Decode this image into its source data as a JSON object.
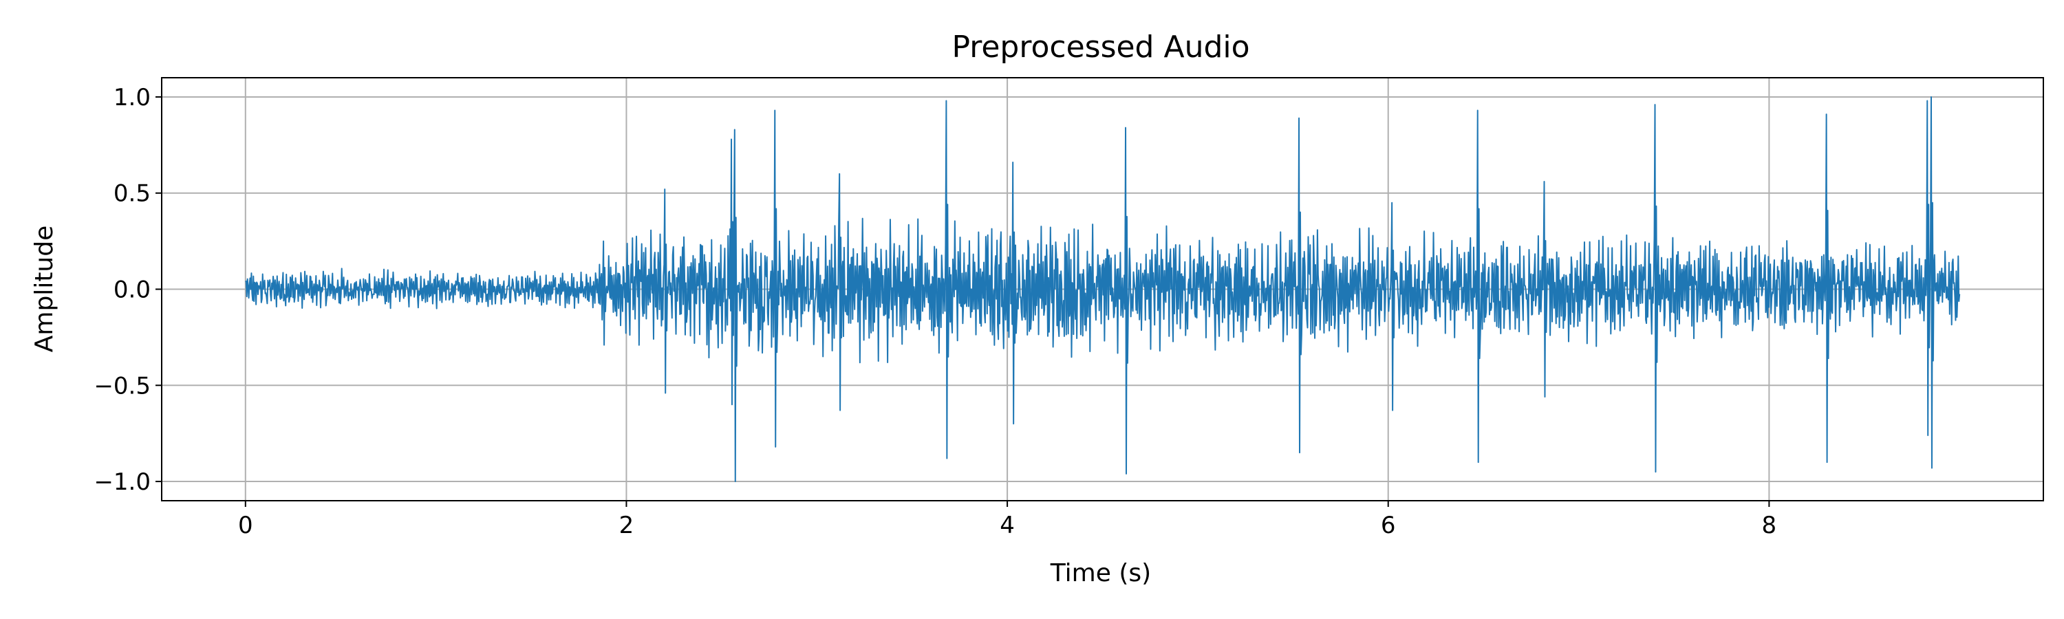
{
  "chart_data": {
    "type": "line",
    "title": "Preprocessed Audio",
    "xlabel": "Time (s)",
    "ylabel": "Amplitude",
    "xlim": [
      -0.44,
      9.44
    ],
    "ylim": [
      -1.1,
      1.1
    ],
    "x_ticks": [
      0,
      2,
      4,
      6,
      8
    ],
    "x_tick_labels": [
      "0",
      "2",
      "4",
      "6",
      "8"
    ],
    "y_ticks": [
      1.0,
      0.5,
      0.0,
      -0.5,
      -1.0
    ],
    "y_tick_labels": [
      "1.0",
      "0.5",
      "0.0",
      "−0.5",
      "−1.0"
    ],
    "grid": true,
    "legend": "none",
    "series": [
      {
        "color": "#1f77b4",
        "duration": 9.0,
        "envelope": [
          {
            "t": 0.0,
            "a": 0.12
          },
          {
            "t": 1.8,
            "a": 0.1
          },
          {
            "t": 2.0,
            "a": 0.3
          },
          {
            "t": 2.5,
            "a": 0.4
          },
          {
            "t": 9.0,
            "a": 0.25
          }
        ],
        "spikes": [
          {
            "t": 1.88,
            "max": 0.25,
            "min": -0.29
          },
          {
            "t": 2.2,
            "max": 0.52,
            "min": -0.54
          },
          {
            "t": 2.55,
            "max": 0.78,
            "min": -0.6
          },
          {
            "t": 2.57,
            "max": 0.83,
            "min": -1.0
          },
          {
            "t": 2.78,
            "max": 0.93,
            "min": -0.82
          },
          {
            "t": 3.12,
            "max": 0.6,
            "min": -0.63
          },
          {
            "t": 3.68,
            "max": 0.98,
            "min": -0.88
          },
          {
            "t": 4.03,
            "max": 0.66,
            "min": -0.7
          },
          {
            "t": 4.62,
            "max": 0.84,
            "min": -0.96
          },
          {
            "t": 5.53,
            "max": 0.89,
            "min": -0.85
          },
          {
            "t": 6.02,
            "max": 0.45,
            "min": -0.63
          },
          {
            "t": 6.47,
            "max": 0.93,
            "min": -0.9
          },
          {
            "t": 6.82,
            "max": 0.56,
            "min": -0.56
          },
          {
            "t": 7.4,
            "max": 0.96,
            "min": -0.95
          },
          {
            "t": 8.3,
            "max": 0.91,
            "min": -0.9
          },
          {
            "t": 8.83,
            "max": 0.98,
            "min": -0.76
          },
          {
            "t": 8.85,
            "max": 1.0,
            "min": -0.93
          }
        ]
      }
    ]
  }
}
